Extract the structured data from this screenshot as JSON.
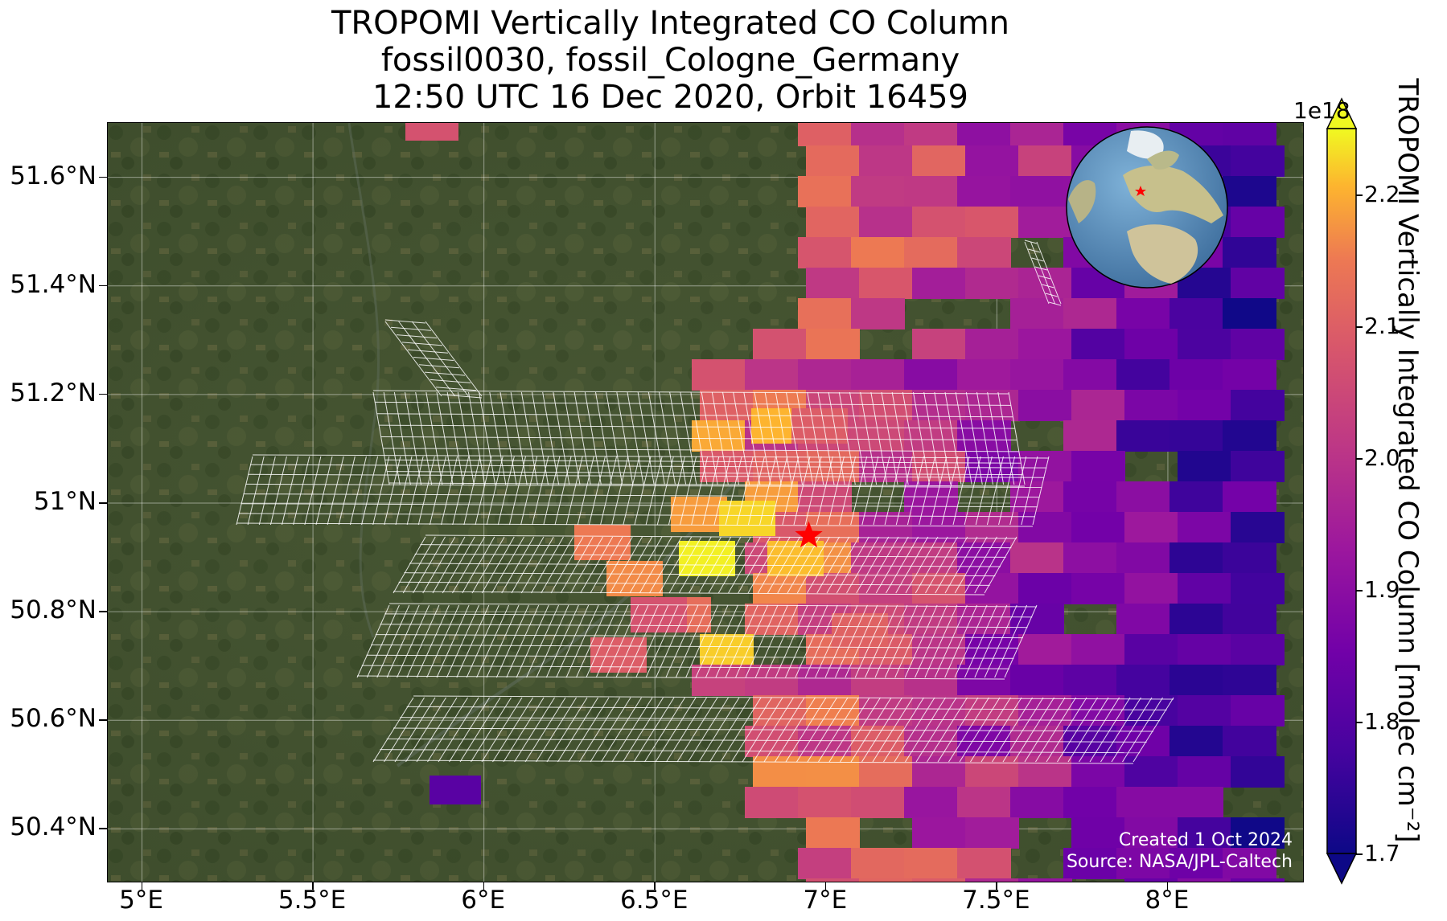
{
  "title": {
    "line1": "TROPOMI Vertically Integrated CO Column",
    "line2": "fossil0030, fossil_Cologne_Germany",
    "line3": "12:50 UTC 16 Dec 2020, Orbit 16459"
  },
  "map": {
    "extent_lon": [
      4.9,
      8.4
    ],
    "extent_lat": [
      50.3,
      51.7
    ],
    "target_marker": {
      "lon": 6.95,
      "lat": 50.94,
      "symbol": "star",
      "color": "#ff0000"
    },
    "lat_ticks": [
      {
        "value": 51.6,
        "label": "51.6°N"
      },
      {
        "value": 51.4,
        "label": "51.4°N"
      },
      {
        "value": 51.2,
        "label": "51.2°N"
      },
      {
        "value": 51.0,
        "label": "51°N"
      },
      {
        "value": 50.8,
        "label": "50.8°N"
      },
      {
        "value": 50.6,
        "label": "50.6°N"
      },
      {
        "value": 50.4,
        "label": "50.4°N"
      }
    ],
    "lon_ticks": [
      {
        "value": 5.0,
        "label": "5°E"
      },
      {
        "value": 5.5,
        "label": "5.5°E"
      },
      {
        "value": 6.0,
        "label": "6°E"
      },
      {
        "value": 6.5,
        "label": "6.5°E"
      },
      {
        "value": 7.0,
        "label": "7°E"
      },
      {
        "value": 7.5,
        "label": "7.5°E"
      },
      {
        "value": 8.0,
        "label": "8°E"
      }
    ],
    "basemap": "satellite imagery",
    "gridlines": true
  },
  "colorbar": {
    "label": "TROPOMI Vertically Integrated CO Column [molec cm⁻²]",
    "exponent": "1e18",
    "colormap": "plasma",
    "range": [
      1.7,
      2.25
    ],
    "extend": "both",
    "ticks": [
      {
        "value": 2.2,
        "label": "2.2"
      },
      {
        "value": 2.1,
        "label": "2.1"
      },
      {
        "value": 2.0,
        "label": "2.0"
      },
      {
        "value": 1.9,
        "label": "1.9"
      },
      {
        "value": 1.8,
        "label": "1.8"
      },
      {
        "value": 1.7,
        "label": "1.7"
      }
    ]
  },
  "inset": {
    "type": "globe",
    "marker": "star",
    "marker_color": "#ff0000"
  },
  "credit": {
    "line1": "Created 1 Oct 2024",
    "line2": "Source: NASA/JPL-Caltech"
  }
}
